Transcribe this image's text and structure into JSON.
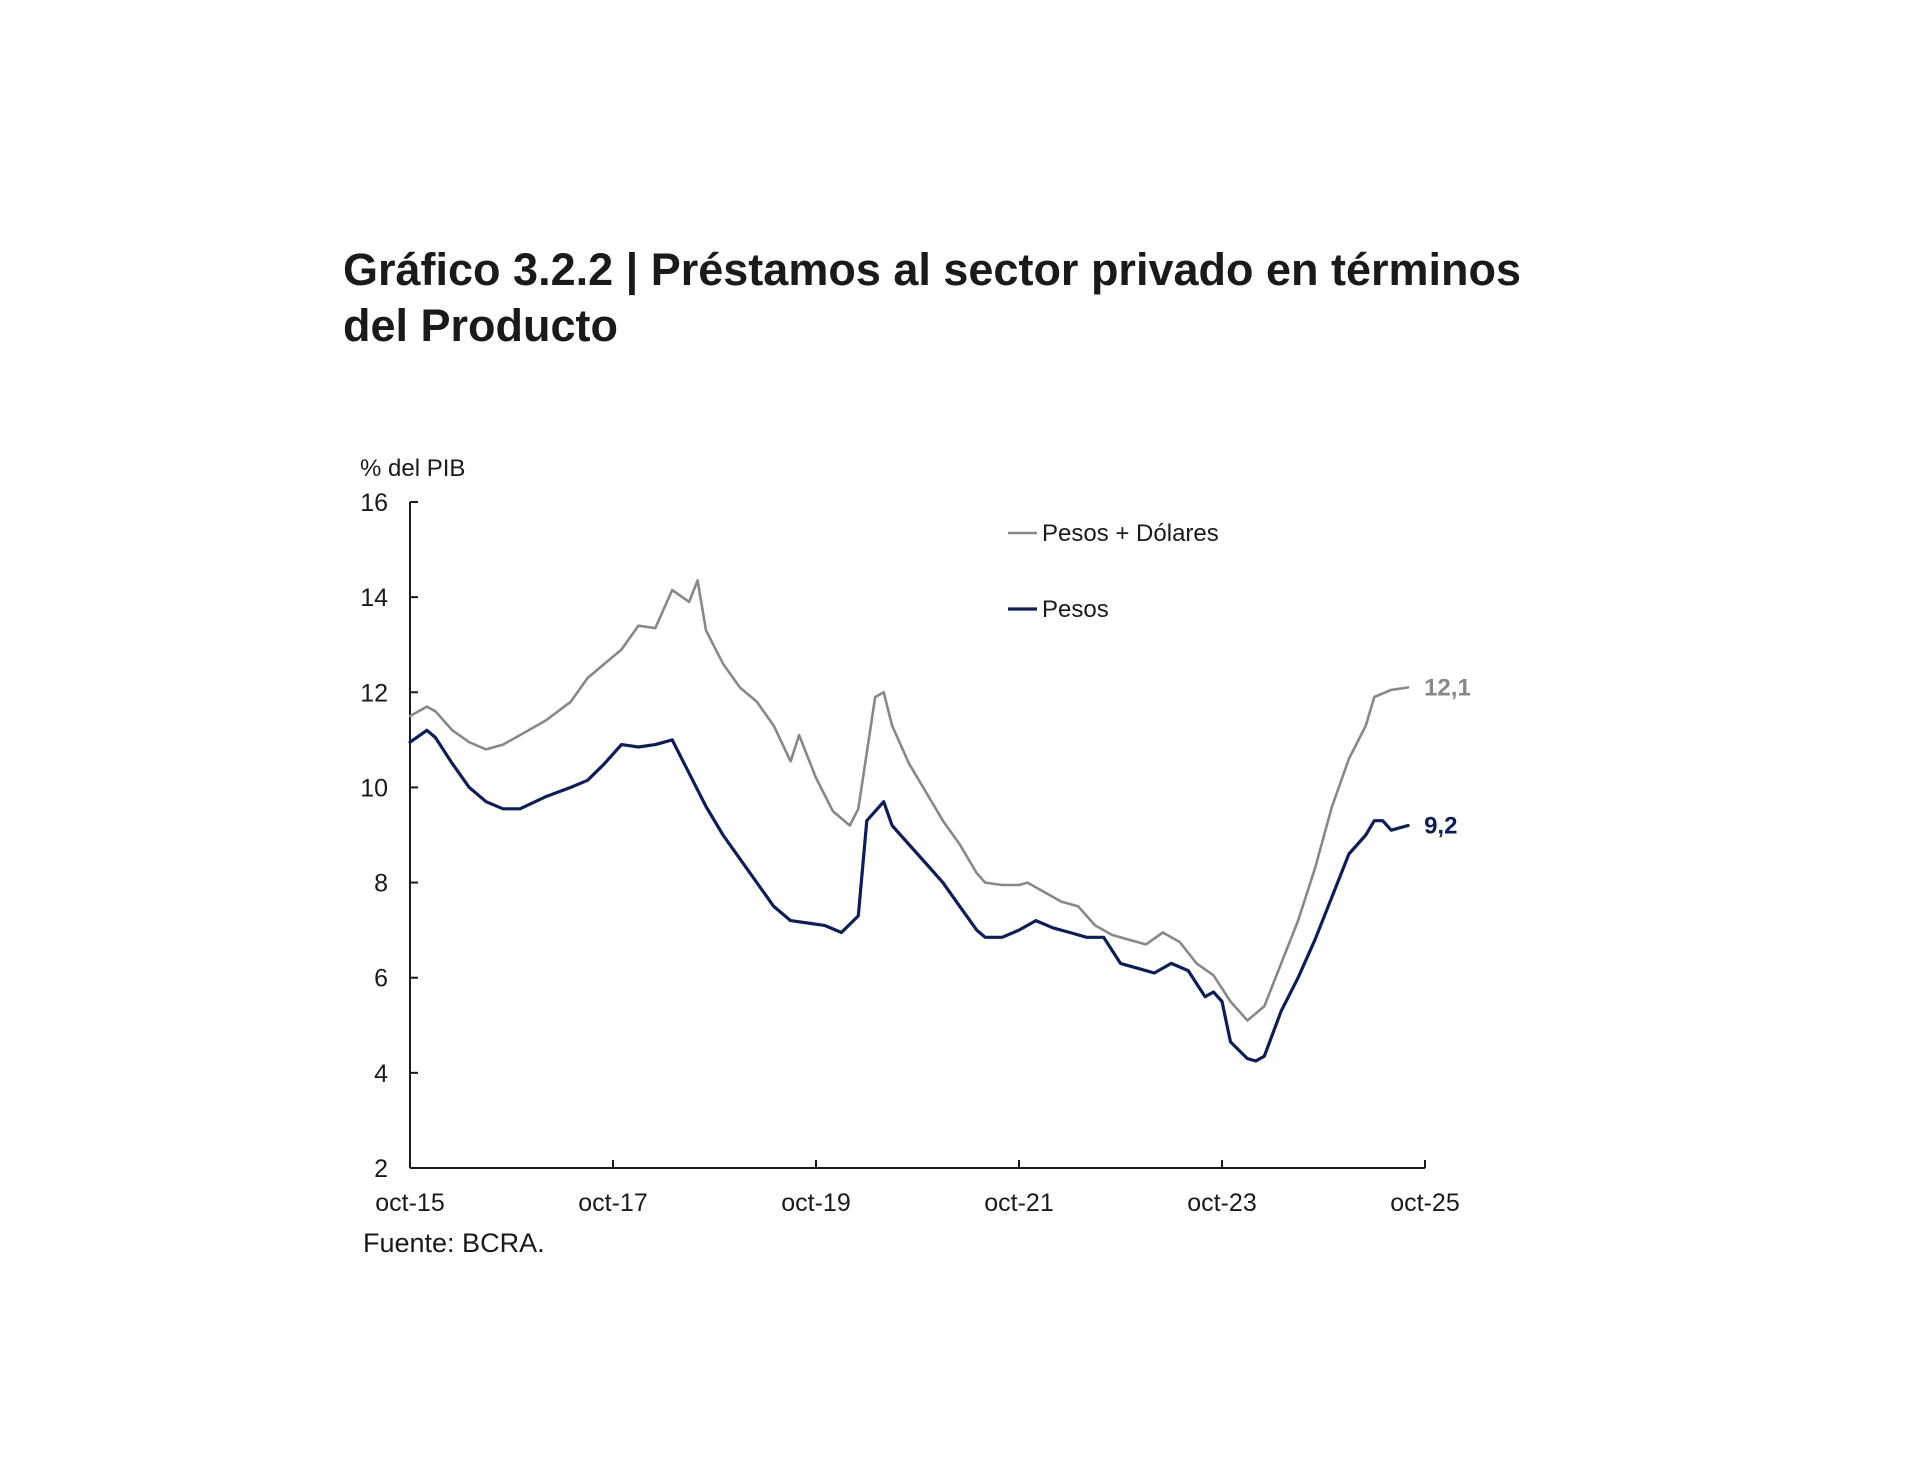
{
  "title_line1": "Gráfico 3.2.2 | Préstamos al sector privado en términos",
  "title_line2": "del Producto",
  "source": "Fuente: BCRA.",
  "chart_data": {
    "type": "line",
    "ylabel": "% del PIB",
    "ylim": [
      2,
      16
    ],
    "yticks": [
      "16",
      "14",
      "12",
      "10",
      "8",
      "6",
      "4",
      "2"
    ],
    "ytick_values": [
      16,
      14,
      12,
      10,
      8,
      6,
      4,
      2
    ],
    "xlim": [
      0,
      120
    ],
    "xticks": [
      "oct-15",
      "oct-17",
      "oct-19",
      "oct-21",
      "oct-23",
      "oct-25"
    ],
    "xtick_positions": [
      0,
      24,
      48,
      72,
      96,
      120
    ],
    "legend": [
      "Pesos + Dólares",
      "Pesos"
    ],
    "series": [
      {
        "name": "Pesos + Dólares",
        "color": "#888888",
        "end_label": "12,1",
        "points": [
          [
            0,
            11.5
          ],
          [
            2,
            11.7
          ],
          [
            3,
            11.6
          ],
          [
            5,
            11.2
          ],
          [
            7,
            10.95
          ],
          [
            9,
            10.8
          ],
          [
            11,
            10.9
          ],
          [
            13,
            11.1
          ],
          [
            16,
            11.4
          ],
          [
            19,
            11.8
          ],
          [
            21,
            12.3
          ],
          [
            23,
            12.6
          ],
          [
            25,
            12.9
          ],
          [
            27,
            13.4
          ],
          [
            29,
            13.35
          ],
          [
            31,
            14.15
          ],
          [
            33,
            13.9
          ],
          [
            34,
            14.35
          ],
          [
            35,
            13.3
          ],
          [
            37,
            12.6
          ],
          [
            39,
            12.1
          ],
          [
            41,
            11.8
          ],
          [
            43,
            11.3
          ],
          [
            45,
            10.55
          ],
          [
            46,
            11.1
          ],
          [
            48,
            10.2
          ],
          [
            50,
            9.5
          ],
          [
            52,
            9.2
          ],
          [
            53,
            9.55
          ],
          [
            55,
            11.9
          ],
          [
            56,
            12.0
          ],
          [
            57,
            11.3
          ],
          [
            59,
            10.5
          ],
          [
            61,
            9.9
          ],
          [
            63,
            9.3
          ],
          [
            65,
            8.8
          ],
          [
            67,
            8.2
          ],
          [
            68,
            8.0
          ],
          [
            70,
            7.95
          ],
          [
            72,
            7.95
          ],
          [
            73,
            8.0
          ],
          [
            75,
            7.8
          ],
          [
            77,
            7.6
          ],
          [
            79,
            7.5
          ],
          [
            81,
            7.1
          ],
          [
            83,
            6.9
          ],
          [
            85,
            6.8
          ],
          [
            87,
            6.7
          ],
          [
            89,
            6.95
          ],
          [
            91,
            6.75
          ],
          [
            93,
            6.3
          ],
          [
            95,
            6.05
          ],
          [
            97,
            5.5
          ],
          [
            99,
            5.1
          ],
          [
            101,
            5.4
          ],
          [
            103,
            6.3
          ],
          [
            105,
            7.2
          ],
          [
            107,
            8.3
          ],
          [
            109,
            9.6
          ],
          [
            111,
            10.6
          ],
          [
            113,
            11.3
          ],
          [
            114,
            11.9
          ],
          [
            116,
            12.05
          ],
          [
            118,
            12.1
          ]
        ]
      },
      {
        "name": "Pesos",
        "color": "#0e1e54",
        "end_label": "9,2",
        "points": [
          [
            0,
            10.95
          ],
          [
            2,
            11.2
          ],
          [
            3,
            11.05
          ],
          [
            5,
            10.5
          ],
          [
            7,
            10.0
          ],
          [
            9,
            9.7
          ],
          [
            11,
            9.55
          ],
          [
            13,
            9.55
          ],
          [
            16,
            9.8
          ],
          [
            19,
            10.0
          ],
          [
            21,
            10.15
          ],
          [
            23,
            10.5
          ],
          [
            25,
            10.9
          ],
          [
            27,
            10.85
          ],
          [
            29,
            10.9
          ],
          [
            31,
            11.0
          ],
          [
            33,
            10.3
          ],
          [
            35,
            9.6
          ],
          [
            37,
            9.0
          ],
          [
            39,
            8.5
          ],
          [
            41,
            8.0
          ],
          [
            43,
            7.5
          ],
          [
            45,
            7.2
          ],
          [
            47,
            7.15
          ],
          [
            49,
            7.1
          ],
          [
            51,
            6.95
          ],
          [
            53,
            7.3
          ],
          [
            54,
            9.3
          ],
          [
            56,
            9.7
          ],
          [
            57,
            9.2
          ],
          [
            59,
            8.8
          ],
          [
            61,
            8.4
          ],
          [
            63,
            8.0
          ],
          [
            65,
            7.5
          ],
          [
            67,
            7.0
          ],
          [
            68,
            6.85
          ],
          [
            70,
            6.85
          ],
          [
            72,
            7.0
          ],
          [
            74,
            7.2
          ],
          [
            76,
            7.05
          ],
          [
            78,
            6.95
          ],
          [
            80,
            6.85
          ],
          [
            82,
            6.85
          ],
          [
            84,
            6.3
          ],
          [
            86,
            6.2
          ],
          [
            88,
            6.1
          ],
          [
            90,
            6.3
          ],
          [
            92,
            6.15
          ],
          [
            94,
            5.6
          ],
          [
            95,
            5.7
          ],
          [
            96,
            5.5
          ],
          [
            97,
            4.65
          ],
          [
            99,
            4.3
          ],
          [
            100,
            4.25
          ],
          [
            101,
            4.35
          ],
          [
            103,
            5.3
          ],
          [
            105,
            6.0
          ],
          [
            107,
            6.8
          ],
          [
            109,
            7.7
          ],
          [
            111,
            8.6
          ],
          [
            113,
            9.0
          ],
          [
            114,
            9.3
          ],
          [
            115,
            9.3
          ],
          [
            116,
            9.1
          ],
          [
            118,
            9.2
          ]
        ]
      }
    ]
  }
}
